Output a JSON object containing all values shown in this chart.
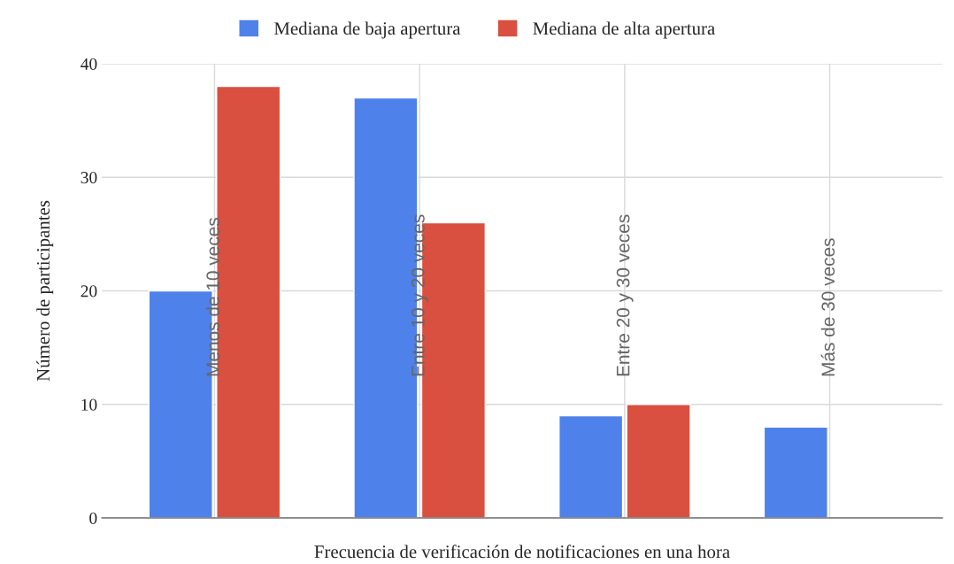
{
  "chart_data": {
    "type": "bar",
    "xlabel": "Frecuencia de verificación de notificaciones en una hora",
    "ylabel": "Número de participantes",
    "categories": [
      "Menos de 10 veces",
      "Entre 10 y 20 veces",
      "Entre 20 y 30 veces",
      "Más de 30 veces"
    ],
    "series": [
      {
        "name": "Mediana de baja apertura",
        "color": "#4f81ea",
        "values": [
          20,
          37,
          9,
          8
        ]
      },
      {
        "name": "Mediana de alta apertura",
        "color": "#d95040",
        "values": [
          38,
          26,
          10,
          null
        ]
      }
    ],
    "ylim": [
      0,
      40
    ],
    "yticks": [
      0,
      10,
      20,
      30,
      40
    ],
    "grid": true,
    "legend": "top",
    "tick_labels": "y"
  }
}
